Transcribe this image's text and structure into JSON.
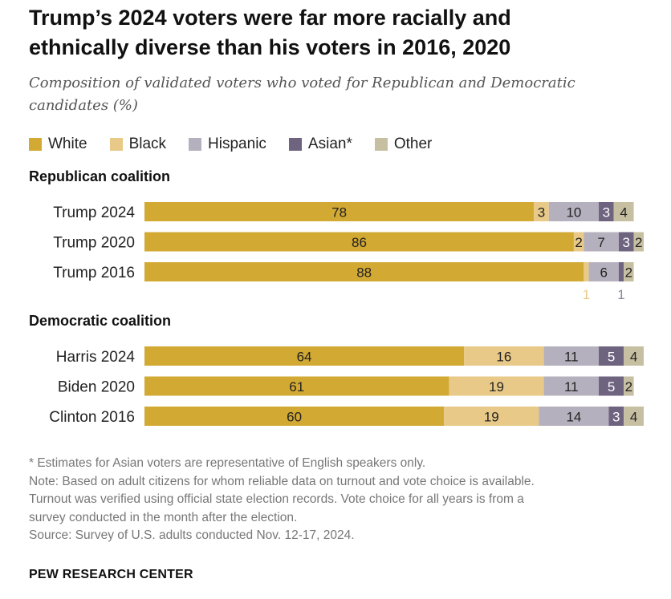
{
  "title_line1": "Trump’s 2024 voters were far more racially and",
  "title_line2": "ethnically diverse than his voters in 2016, 2020",
  "subtitle_line1": "Composition of validated voters who voted for Republican and Democratic",
  "subtitle_line2": "candidates (%)",
  "colors": {
    "White": "#d2a933",
    "Black": "#e8c987",
    "Hispanic": "#b5b0bd",
    "Asian*": "#6e6480",
    "Other": "#c7bfa1"
  },
  "chart_data": {
    "type": "bar",
    "orientation": "horizontal",
    "stacked": true,
    "series_names": [
      "White",
      "Black",
      "Hispanic",
      "Asian*",
      "Other"
    ],
    "groups": [
      {
        "name": "Republican coalition",
        "rows": [
          {
            "label": "Trump 2024",
            "values": [
              78,
              3,
              10,
              3,
              4
            ]
          },
          {
            "label": "Trump 2020",
            "values": [
              86,
              2,
              7,
              3,
              2
            ]
          },
          {
            "label": "Trump 2016",
            "values": [
              88,
              1,
              6,
              1,
              2
            ]
          }
        ]
      },
      {
        "name": "Democratic coalition",
        "rows": [
          {
            "label": "Harris 2024",
            "values": [
              64,
              16,
              11,
              5,
              4
            ]
          },
          {
            "label": "Biden 2020",
            "values": [
              61,
              19,
              11,
              5,
              2
            ]
          },
          {
            "label": "Clinton 2016",
            "values": [
              60,
              19,
              14,
              3,
              4
            ]
          }
        ]
      }
    ],
    "xlim": [
      0,
      100
    ],
    "grid": false,
    "legend_position": "top-left"
  },
  "footnote_1": "* Estimates for Asian voters are representative of English speakers only.",
  "note_line1": "Note: Based on adult citizens for whom reliable data on turnout and vote choice is available.",
  "note_line2": "Turnout was verified using official state election records. Vote choice for all years is from a",
  "note_line3": "survey conducted in the month after the election.",
  "source": "Source: Survey of U.S. adults conducted Nov. 12-17, 2024.",
  "brand": "PEW RESEARCH CENTER"
}
